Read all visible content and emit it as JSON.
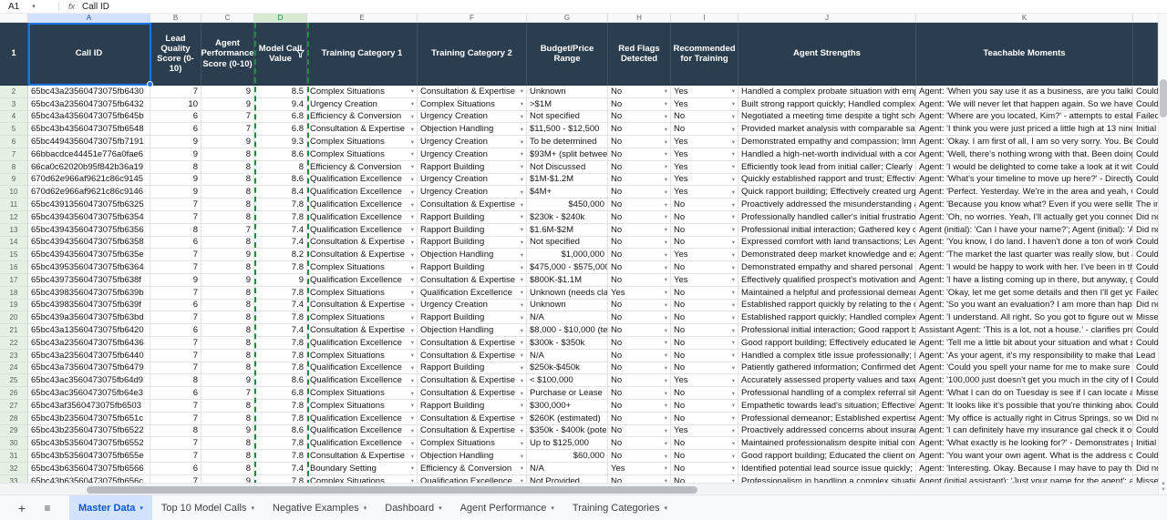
{
  "toolbar": {
    "name_box": "A1",
    "fx_label": "fx",
    "formula_value": "Call ID"
  },
  "icons": {
    "plus": "+",
    "menu": "≡",
    "caret_down": "▾",
    "scroll_up": "▲",
    "scroll_down": "▼"
  },
  "colors": {
    "header_bg": "#2b3e50",
    "selection_blue": "#1a73e8",
    "filter_green": "#1e8e3e",
    "active_tab_bg": "#d3e3fd",
    "active_tab_text": "#0b57d0",
    "row_header_green": "#e7f0e4"
  },
  "columns": {
    "letters": [
      "A",
      "B",
      "C",
      "D",
      "E",
      "F",
      "G",
      "H",
      "I",
      "J",
      "K",
      ""
    ],
    "headers": {
      "a": "Call ID",
      "b": "Lead Quality Score (0-10)",
      "c": "Agent Performance Score (0-10)",
      "d": "Model Call Value",
      "e": "Training Category 1",
      "f": "Training Category 2",
      "g": "Budget/Price Range",
      "h": "Red Flags Detected",
      "i": "Recommended for Training",
      "j": "Agent Strengths",
      "k": "Teachable Moments"
    }
  },
  "rows": [
    {
      "n": 2,
      "id": "65bc43a23560473075fb6430",
      "lead": 7,
      "perf": 9,
      "model": 8.5,
      "cat1": "Complex Situations",
      "cat2": "Consultation & Expertise",
      "budget": "Unknown",
      "flags": "No",
      "rec": "Yes",
      "strengths": "Handled a complex probate situation with emp",
      "teachable": "Agent: 'When you say use it as a business, are you talking a",
      "extra": "Could"
    },
    {
      "n": 3,
      "id": "65bc43a23560473075fb6432",
      "lead": 10,
      "perf": 9,
      "model": 9.4,
      "cat1": "Urgency Creation",
      "cat2": "Complex Situations",
      "budget": ">$1M",
      "flags": "No",
      "rec": "Yes",
      "strengths": "Built strong rapport quickly; Handled complex",
      "teachable": "Agent: 'We will never let that happen again. So we have a l",
      "extra": "Could"
    },
    {
      "n": 4,
      "id": "65bc43a43560473075fb645b",
      "lead": 6,
      "perf": 7,
      "model": 6.8,
      "cat1": "Efficiency & Conversion",
      "cat2": "Urgency Creation",
      "budget": "Not specified",
      "flags": "No",
      "rec": "No",
      "strengths": "Negotiated a meeting time despite a tight sche",
      "teachable": "Agent: 'Where are you located, Kim?' - attempts to establis",
      "extra": "Failed"
    },
    {
      "n": 5,
      "id": "65bc43b43560473075fb6548",
      "lead": 6,
      "perf": 7,
      "model": 6.8,
      "cat1": "Consultation & Expertise",
      "cat2": "Objection Handling",
      "budget": "$11,500 - $12,500",
      "flags": "No",
      "rec": "No",
      "strengths": "Provided market analysis with comparable sale",
      "teachable": "Agent: 'I think you were just priced a little high at 13 nine.'",
      "extra": "Initial"
    },
    {
      "n": 6,
      "id": "65bc44943560473075fb7191",
      "lead": 9,
      "perf": 9,
      "model": 9.3,
      "cat1": "Complex Situations",
      "cat2": "Urgency Creation",
      "budget": "To be determined",
      "flags": "No",
      "rec": "Yes",
      "strengths": "Demonstrated empathy and compassion; Imm",
      "teachable": "Agent: 'Okay. I am first of all, I am so very sorry. You. Berni",
      "extra": "Could"
    },
    {
      "n": 7,
      "id": "66bbacdce44451e776a0fae6",
      "lead": 9,
      "perf": 8,
      "model": 8.6,
      "cat1": "Complex Situations",
      "cat2": "Urgency Creation",
      "budget": "$93M+ (split betwee",
      "flags": "No",
      "rec": "Yes",
      "strengths": "Handled a high-net-worth individual with a cor",
      "teachable": "Agent: 'Well, there's nothing wrong with that. Been doing",
      "extra": "Could"
    },
    {
      "n": 8,
      "id": "66ca0c62020b95f842b36a19",
      "lead": 8,
      "perf": 8,
      "model": 8,
      "cat1": "Efficiency & Conversion",
      "cat2": "Rapport Building",
      "budget": "Not Discussed",
      "flags": "No",
      "rec": "Yes",
      "strengths": "Efficiently took lead from initial caller; Clearly a",
      "teachable": "Agent: 'I would be delighted to come take a look at it with",
      "extra": "Could"
    },
    {
      "n": 9,
      "id": "670d62e966af9621c86c9145",
      "lead": 9,
      "perf": 8,
      "model": 8.6,
      "cat1": "Qualification Excellence",
      "cat2": "Urgency Creation",
      "budget": "$1M-$1.2M",
      "flags": "No",
      "rec": "Yes",
      "strengths": "Quickly established rapport and trust; Effective",
      "teachable": "Agent: 'What's your timeline to move up here?' - Directly a",
      "extra": "Could"
    },
    {
      "n": 10,
      "id": "670d62e966af9621c86c9146",
      "lead": 9,
      "perf": 8,
      "model": 8.4,
      "cat1": "Qualification Excellence",
      "cat2": "Urgency Creation",
      "budget": "$4M+",
      "flags": "No",
      "rec": "Yes",
      "strengths": "Quick rapport building; Effectively created urge",
      "teachable": "Agent: 'Perfect. Yesterday. We're in the area and yeah, we",
      "extra": "Could"
    },
    {
      "n": 11,
      "id": "65bc43913560473075fb6325",
      "lead": 7,
      "perf": 8,
      "model": 7.8,
      "cat1": "Qualification Excellence",
      "cat2": "Consultation & Expertise",
      "budget": "$450,000",
      "budget_align": "right",
      "flags": "No",
      "rec": "No",
      "strengths": "Proactively addressed the misunderstanding al",
      "teachable": "Agent: 'Because you know what? Even if you were selling y",
      "extra": "The in"
    },
    {
      "n": 12,
      "id": "65bc43943560473075fb6354",
      "lead": 7,
      "perf": 8,
      "model": 7.8,
      "cat1": "Qualification Excellence",
      "cat2": "Rapport Building",
      "budget": "$230k - $240k",
      "flags": "No",
      "rec": "No",
      "strengths": "Professionally handled caller's initial frustratio",
      "teachable": "Agent: 'Oh, no worries. Yeah, I'll actually get you connecte",
      "extra": "Did no"
    },
    {
      "n": 13,
      "id": "65bc43943560473075fb6356",
      "lead": 8,
      "perf": 7,
      "model": 7.4,
      "cat1": "Qualification Excellence",
      "cat2": "Rapport Building",
      "budget": "$1.6M-$2M",
      "flags": "No",
      "rec": "No",
      "strengths": "Professional initial interaction; Gathered key d",
      "teachable": "Agent (initial): 'Can I have your name?'; Agent (initial): 'An",
      "extra": "Did no"
    },
    {
      "n": 14,
      "id": "65bc43943560473075fb6358",
      "lead": 6,
      "perf": 8,
      "model": 7.4,
      "cat1": "Consultation & Expertise",
      "cat2": "Rapport Building",
      "budget": "Not specified",
      "flags": "No",
      "rec": "No",
      "strengths": "Expressed comfort with land transactions; Leve",
      "teachable": "Agent: 'You know, I do land. I haven't done a ton of work w",
      "extra": "Could"
    },
    {
      "n": 15,
      "id": "65bc43943560473075fb635e",
      "lead": 7,
      "perf": 9,
      "model": 8.2,
      "cat1": "Consultation & Expertise",
      "cat2": "Objection Handling",
      "budget": "$1,000,000",
      "budget_align": "right",
      "flags": "No",
      "rec": "Yes",
      "strengths": "Demonstrated deep market knowledge and ex",
      "teachable": "Agent: 'The market the last quarter was really slow, but as",
      "extra": "Could"
    },
    {
      "n": 16,
      "id": "65bc43953560473075fb6364",
      "lead": 7,
      "perf": 8,
      "model": 7.8,
      "cat1": "Complex Situations",
      "cat2": "Rapport Building",
      "budget": "$475,000 - $575,000",
      "flags": "No",
      "rec": "No",
      "strengths": "Demonstrated empathy and shared personal e",
      "teachable": "Agent: 'I would be happy to work with her. I've been in the",
      "extra": "Could"
    },
    {
      "n": 17,
      "id": "65bc43973560473075fb638f",
      "lead": 9,
      "perf": 9,
      "model": 9,
      "cat1": "Qualification Excellence",
      "cat2": "Consultation & Expertise",
      "budget": "$800K-$1.1M",
      "flags": "No",
      "rec": "Yes",
      "strengths": "Effectively qualified prospect's motivation and",
      "teachable": "Agent: 'I have a listing coming up in there, but anyway, go",
      "extra": "Could"
    },
    {
      "n": 18,
      "id": "65bc43983560473075fb639b",
      "lead": 7,
      "perf": 8,
      "model": 7.8,
      "cat1": "Complex Situations",
      "cat2": "Qualification Excellence",
      "budget": "Unknown (needs cla",
      "flags": "Yes",
      "rec": "No",
      "strengths": "Maintained a helpful and professional demean",
      "teachable": "Agent: 'Okay, let me get some details and then I'll get you",
      "extra": "Failed"
    },
    {
      "n": 19,
      "id": "65bc43983560473075fb639f",
      "lead": 6,
      "perf": 8,
      "model": 7.4,
      "cat1": "Consultation & Expertise",
      "cat2": "Urgency Creation",
      "budget": "Unknown",
      "flags": "No",
      "rec": "No",
      "strengths": "Established rapport quickly by relating to the c",
      "teachable": "Agent: 'So you want an evaluation? I am more than happy.",
      "extra": "Did no"
    },
    {
      "n": 20,
      "id": "65bc439a3560473075fb63bd",
      "lead": 7,
      "perf": 8,
      "model": 7.8,
      "cat1": "Complex Situations",
      "cat2": "Rapport Building",
      "budget": "N/A",
      "flags": "No",
      "rec": "No",
      "strengths": "Established rapport quickly; Handled complex",
      "teachable": "Agent: 'I understand. All right. So you got to figure out wh",
      "extra": "Misse"
    },
    {
      "n": 21,
      "id": "65bc43a13560473075fb6420",
      "lead": 6,
      "perf": 8,
      "model": 7.4,
      "cat1": "Consultation & Expertise",
      "cat2": "Objection Handling",
      "budget": "$8,000 - $10,000 (te",
      "flags": "No",
      "rec": "No",
      "strengths": "Professional initial interaction; Good rapport b",
      "teachable": "Assistant Agent: 'This is a lot, not a house.' - clarifies prope",
      "extra": "Could"
    },
    {
      "n": 22,
      "id": "65bc43a23560473075fb6436",
      "lead": 7,
      "perf": 8,
      "model": 7.8,
      "cat1": "Qualification Excellence",
      "cat2": "Consultation & Expertise",
      "budget": "$300k - $350k",
      "flags": "No",
      "rec": "No",
      "strengths": "Good rapport building; Effectively educated lea",
      "teachable": "Agent: 'Tell me a little bit about your situation and what sc",
      "extra": "Could"
    },
    {
      "n": 23,
      "id": "65bc43a23560473075fb6440",
      "lead": 7,
      "perf": 8,
      "model": 7.8,
      "cat1": "Complex Situations",
      "cat2": "Consultation & Expertise",
      "budget": "N/A",
      "flags": "No",
      "rec": "No",
      "strengths": "Handled a complex title issue professionally; P",
      "teachable": "Agent: 'As your agent, it's my responsibility to make that a",
      "extra": "Lead r"
    },
    {
      "n": 24,
      "id": "65bc43a73560473075fb6479",
      "lead": 7,
      "perf": 8,
      "model": 7.8,
      "cat1": "Qualification Excellence",
      "cat2": "Rapport Building",
      "budget": "$250k-$450k",
      "flags": "No",
      "rec": "No",
      "strengths": "Patiently gathered information; Confirmed det",
      "teachable": "Agent: 'Could you spell your name for me to make sure I h",
      "extra": "Could"
    },
    {
      "n": 25,
      "id": "65bc43ac3560473075fb64d9",
      "lead": 8,
      "perf": 9,
      "model": 8.6,
      "cat1": "Qualification Excellence",
      "cat2": "Consultation & Expertise",
      "budget": "< $100,000",
      "flags": "No",
      "rec": "Yes",
      "strengths": "Accurately assessed property values and taxes;",
      "teachable": "Agent: '100,000 just doesn't get you much in the city of Re",
      "extra": "Could"
    },
    {
      "n": 26,
      "id": "65bc43ac3560473075fb64e3",
      "lead": 6,
      "perf": 7,
      "model": 6.8,
      "cat1": "Complex Situations",
      "cat2": "Consultation & Expertise",
      "budget": "Purchase or Lease",
      "flags": "No",
      "rec": "No",
      "strengths": "Professional handling of a complex referral situ",
      "teachable": "Agent: 'What I can do on Tuesday is see if I can locate a co",
      "extra": "Misse"
    },
    {
      "n": 27,
      "id": "65bc43af3560473075fb6503",
      "lead": 7,
      "perf": 8,
      "model": 7.8,
      "cat1": "Complex Situations",
      "cat2": "Rapport Building",
      "budget": "$300,000+",
      "flags": "No",
      "rec": "No",
      "strengths": "Empathetic towards lead's situation; Effectively",
      "teachable": "Agent: 'It looks like it's possible that you're thinking about",
      "extra": "Could"
    },
    {
      "n": 28,
      "id": "65bc43b23560473075fb651c",
      "lead": 7,
      "perf": 8,
      "model": 7.8,
      "cat1": "Qualification Excellence",
      "cat2": "Consultation & Expertise",
      "budget": "$260K (estimated)",
      "flags": "No",
      "rec": "No",
      "strengths": "Professional demeanor; Established expertise v",
      "teachable": "Agent: 'My office is actually right in Citrus Springs, so we k",
      "extra": "Did no"
    },
    {
      "n": 29,
      "id": "65bc43b23560473075fb6522",
      "lead": 8,
      "perf": 9,
      "model": 8.6,
      "cat1": "Qualification Excellence",
      "cat2": "Consultation & Expertise",
      "budget": "$350k - $400k (pote",
      "flags": "No",
      "rec": "Yes",
      "strengths": "Proactively addressed concerns about insuranc",
      "teachable": "Agent: 'I can definitely have my insurance gal check it out.'",
      "extra": "Could"
    },
    {
      "n": 30,
      "id": "65bc43b53560473075fb6552",
      "lead": 7,
      "perf": 8,
      "model": 7.8,
      "cat1": "Qualification Excellence",
      "cat2": "Complex Situations",
      "budget": "Up to $125,000",
      "flags": "No",
      "rec": "No",
      "strengths": "Maintained professionalism despite initial conf",
      "teachable": "Agent: 'What exactly is he looking for?' - Demonstrates piv",
      "extra": "Initial"
    },
    {
      "n": 31,
      "id": "65bc43b53560473075fb655e",
      "lead": 7,
      "perf": 8,
      "model": 7.8,
      "cat1": "Consultation & Expertise",
      "cat2": "Objection Handling",
      "budget": "$60,000",
      "budget_align": "right",
      "flags": "No",
      "rec": "No",
      "strengths": "Good rapport building; Educated the client on",
      "teachable": "Agent: 'You want your own agent. What is the address of y",
      "extra": "Could"
    },
    {
      "n": 32,
      "id": "65bc43b63560473075fb6566",
      "lead": 6,
      "perf": 8,
      "model": 7.4,
      "cat1": "Boundary Setting",
      "cat2": "Efficiency & Conversion",
      "budget": "N/A",
      "flags": "Yes",
      "rec": "No",
      "strengths": "Identified potential lead source issue quickly; F",
      "teachable": "Agent: 'Interesting. Okay. Because I may have to pay them",
      "extra": "Did no"
    },
    {
      "n": 33,
      "id": "65bc43b63560473075fb656c",
      "lead": 7,
      "perf": 9,
      "model": 7.8,
      "cat1": "Complex Situations",
      "cat2": "Qualification Excellence",
      "budget": "Not Provided",
      "flags": "No",
      "rec": "No",
      "strengths": "Professionalism in handling a complex situatio",
      "teachable": "Agent (initial assistant): 'Just your name for the agent'; at",
      "extra": "Misse"
    }
  ],
  "tabs": [
    {
      "label": "Master Data",
      "active": true
    },
    {
      "label": "Top 10 Model Calls",
      "active": false
    },
    {
      "label": "Negative Examples",
      "active": false
    },
    {
      "label": "Dashboard",
      "active": false
    },
    {
      "label": "Agent Performance",
      "active": false
    },
    {
      "label": "Training Categories",
      "active": false
    }
  ]
}
